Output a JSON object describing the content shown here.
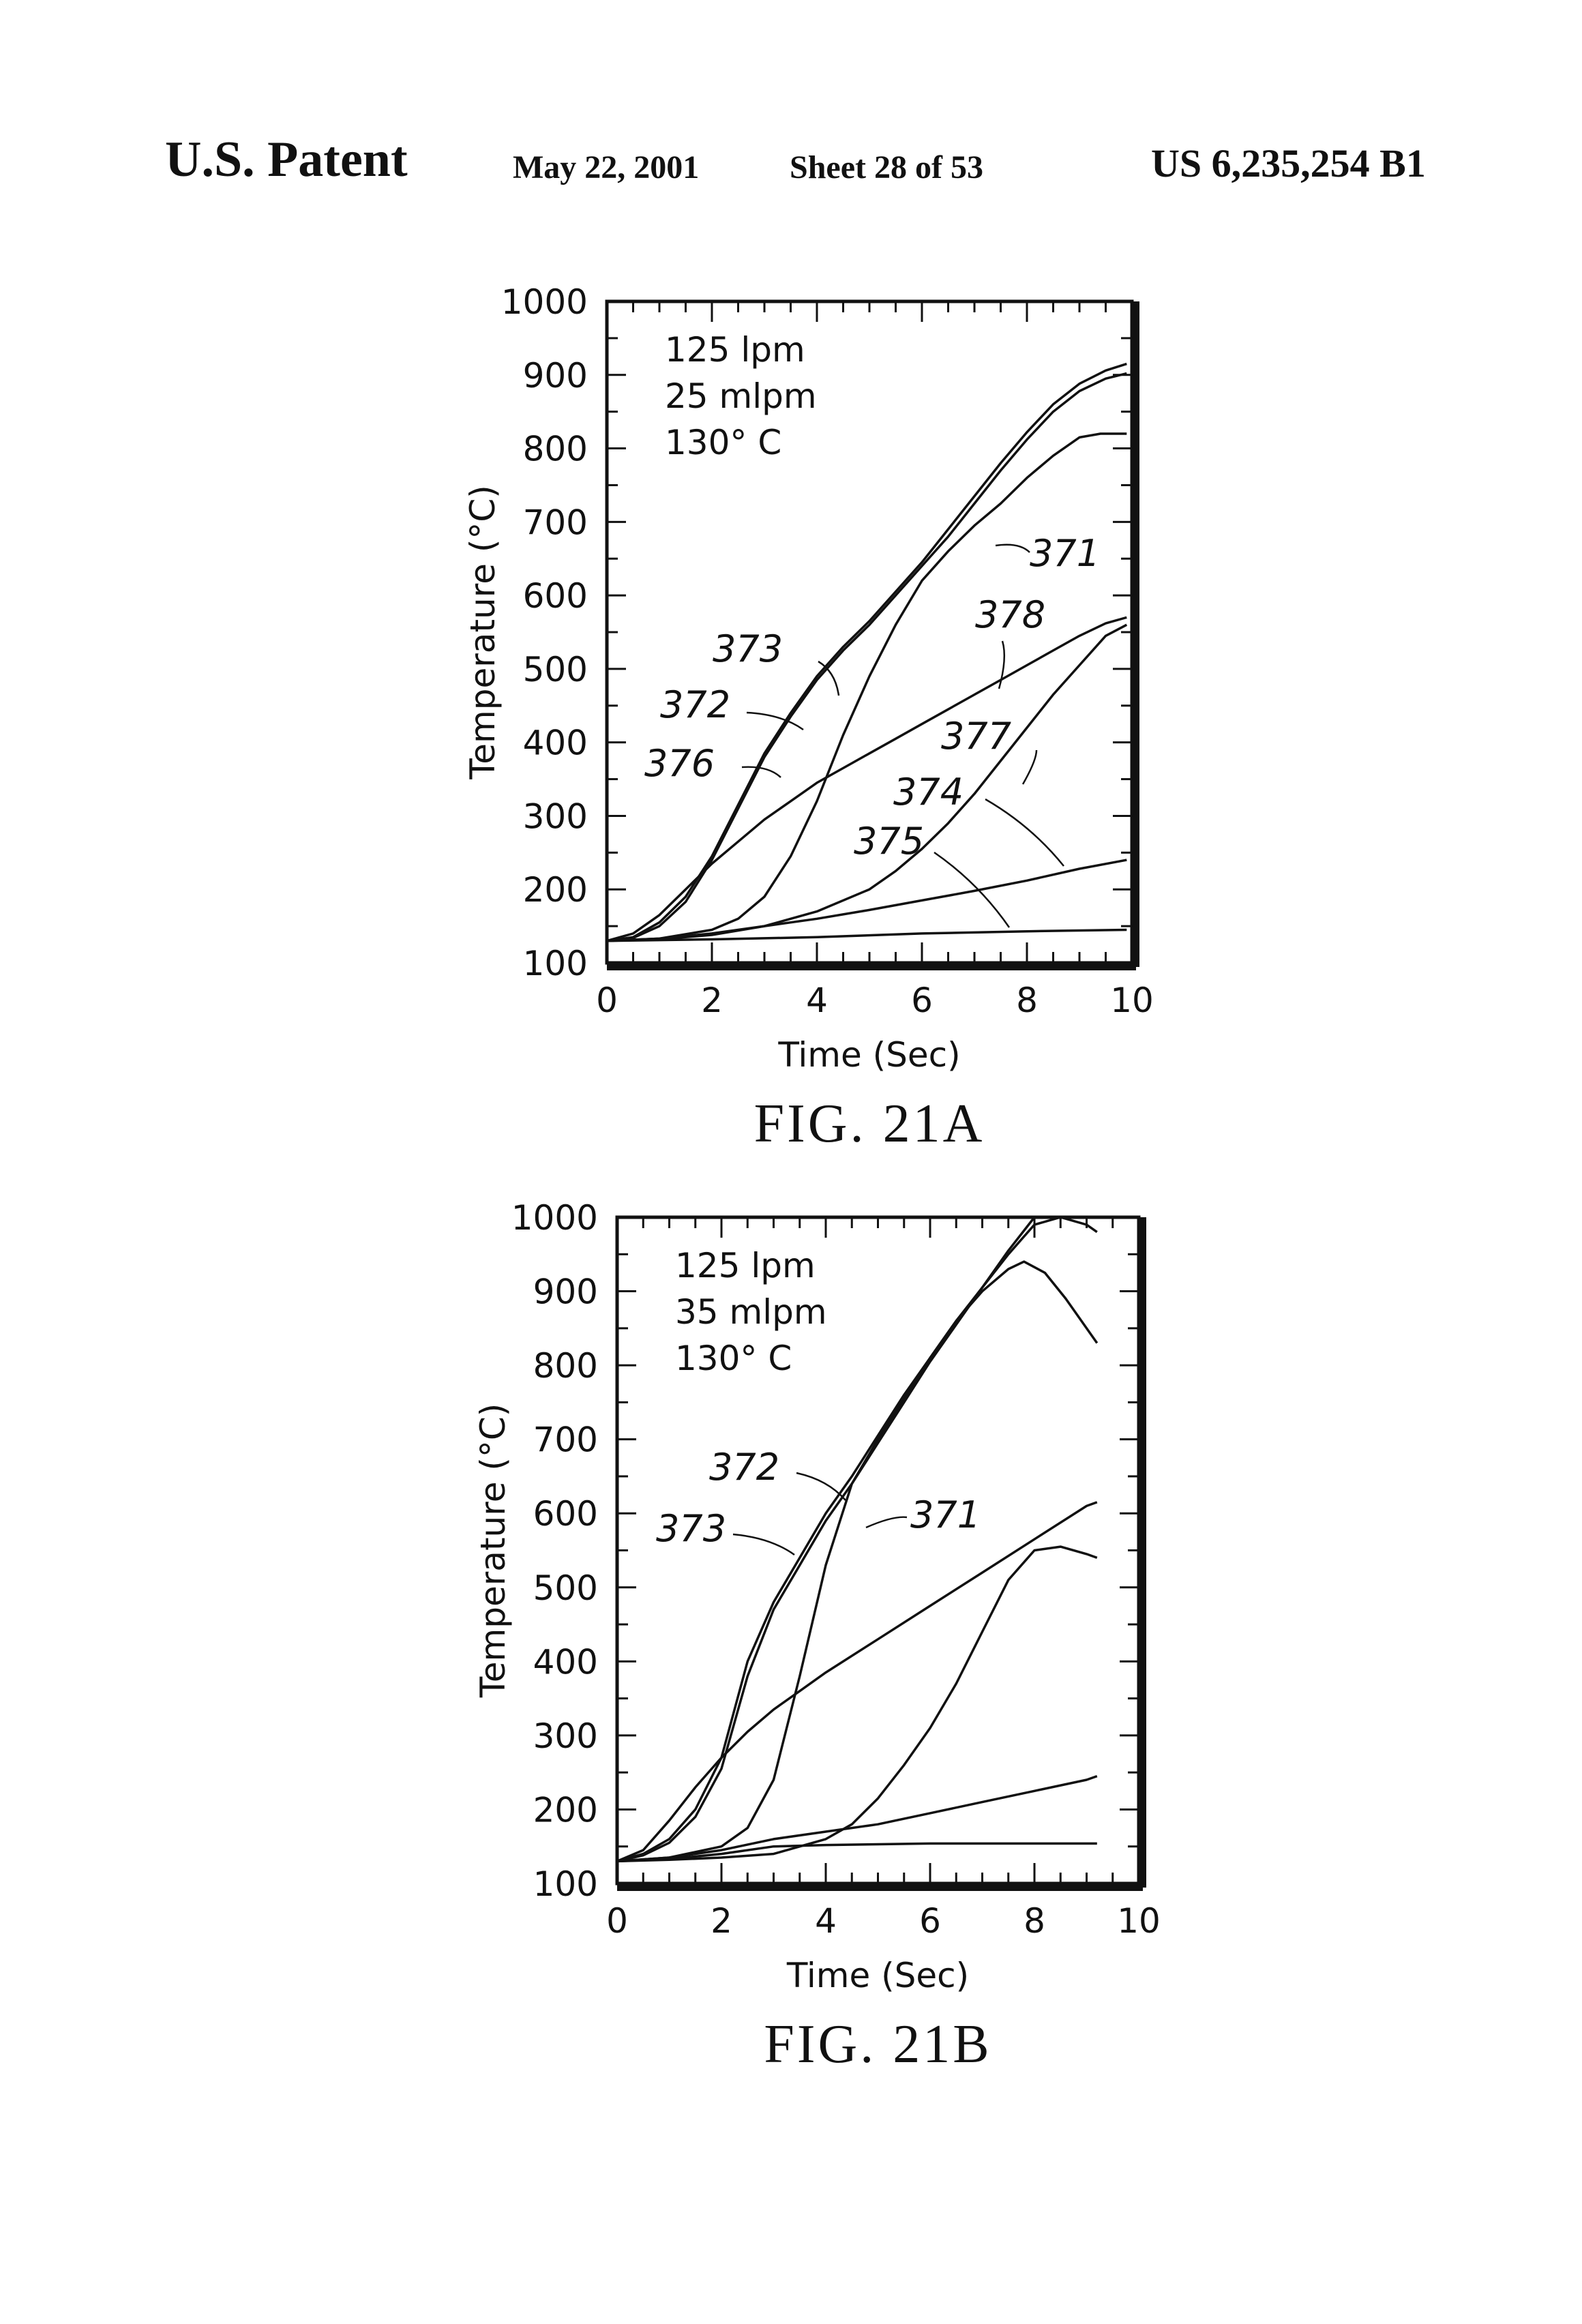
{
  "header": {
    "left": "U.S. Patent",
    "date": "May 22, 2001",
    "sheet": "Sheet 28 of 53",
    "number": "US 6,235,254 B1"
  },
  "chart_data": [
    {
      "type": "line",
      "caption": "FIG. 21A",
      "xlabel": "Time (Sec)",
      "ylabel": "Temperature (°C)",
      "xlim": [
        0,
        10
      ],
      "ylim": [
        100,
        1000
      ],
      "xticks": [
        0,
        2,
        4,
        6,
        8,
        10
      ],
      "yticks": [
        100,
        200,
        300,
        400,
        500,
        600,
        700,
        800,
        900,
        1000
      ],
      "annotation": [
        "125 lpm",
        "25 mlpm",
        "130° C"
      ],
      "series": [
        {
          "name": "373",
          "x": [
            0,
            0.5,
            1,
            1.5,
            2,
            2.5,
            3,
            3.5,
            4,
            4.5,
            5,
            5.5,
            6,
            6.5,
            7,
            7.5,
            8,
            8.5,
            9,
            9.5,
            9.9
          ],
          "y": [
            130,
            135,
            155,
            190,
            245,
            315,
            385,
            440,
            490,
            530,
            565,
            605,
            645,
            690,
            735,
            780,
            822,
            860,
            888,
            906,
            915
          ]
        },
        {
          "name": "372",
          "x": [
            0,
            0.5,
            1,
            1.5,
            2,
            2.5,
            3,
            3.5,
            4,
            4.5,
            5,
            5.5,
            6,
            6.5,
            7,
            7.5,
            8,
            8.5,
            9,
            9.5,
            9.9
          ],
          "y": [
            130,
            134,
            150,
            183,
            240,
            310,
            380,
            435,
            485,
            525,
            560,
            600,
            640,
            680,
            725,
            770,
            812,
            850,
            878,
            895,
            902
          ]
        },
        {
          "name": "371",
          "x": [
            0,
            1,
            2,
            2.5,
            3,
            3.5,
            4,
            4.5,
            5,
            5.5,
            6,
            6.5,
            7,
            7.5,
            8,
            8.5,
            9,
            9.4,
            9.9
          ],
          "y": [
            130,
            133,
            145,
            160,
            190,
            245,
            320,
            410,
            490,
            560,
            620,
            660,
            695,
            725,
            760,
            790,
            815,
            820,
            820
          ]
        },
        {
          "name": "376",
          "x": [
            0,
            0.5,
            1,
            1.5,
            2,
            2.5,
            3,
            3.5,
            4,
            4.5,
            5,
            5.5,
            6,
            6.5,
            7,
            7.5,
            8,
            8.5,
            9,
            9.5,
            9.9
          ],
          "y": [
            130,
            140,
            165,
            200,
            235,
            265,
            295,
            320,
            345,
            365,
            385,
            405,
            425,
            445,
            465,
            485,
            505,
            525,
            545,
            562,
            570
          ]
        },
        {
          "name": "378",
          "x": [
            0,
            1,
            2,
            3,
            4,
            5,
            5.5,
            6,
            6.5,
            7,
            7.5,
            8,
            8.5,
            9,
            9.5,
            9.9
          ],
          "y": [
            130,
            132,
            138,
            150,
            170,
            200,
            225,
            255,
            290,
            330,
            375,
            420,
            465,
            505,
            545,
            560
          ]
        },
        {
          "name": "377",
          "x": [
            0,
            1,
            2,
            3,
            4,
            5,
            6,
            7,
            8,
            9,
            9.9
          ],
          "y": [
            130,
            133,
            140,
            150,
            160,
            172,
            185,
            198,
            212,
            228,
            240
          ]
        },
        {
          "name": "374",
          "x": [
            0,
            2,
            4,
            6,
            8,
            9.9
          ],
          "y": [
            130,
            132,
            135,
            140,
            143,
            145
          ]
        },
        {
          "name": "375",
          "x": [],
          "y": []
        }
      ],
      "labels": [
        "373",
        "372",
        "376",
        "371",
        "378",
        "377",
        "374",
        "375"
      ]
    },
    {
      "type": "line",
      "caption": "FIG. 21B",
      "xlabel": "Time (Sec)",
      "ylabel": "Temperature (°C)",
      "xlim": [
        0,
        10
      ],
      "ylim": [
        100,
        1000
      ],
      "xticks": [
        0,
        2,
        4,
        6,
        8,
        10
      ],
      "yticks": [
        100,
        200,
        300,
        400,
        500,
        600,
        700,
        800,
        900,
        1000
      ],
      "annotation": [
        "125 lpm",
        "35 mlpm",
        "130° C"
      ],
      "series": [
        {
          "name": "373",
          "x": [
            0,
            0.5,
            1,
            1.5,
            2,
            2.5,
            3,
            3.5,
            4,
            4.5,
            5,
            5.5,
            6,
            6.5,
            7,
            7.5,
            8,
            8.5,
            9,
            9.2
          ],
          "y": [
            130,
            140,
            160,
            200,
            270,
            400,
            480,
            540,
            600,
            650,
            705,
            760,
            810,
            860,
            905,
            950,
            990,
            1000,
            990,
            980
          ]
        },
        {
          "name": "372",
          "x": [
            0,
            0.5,
            1,
            1.5,
            2,
            2.5,
            3,
            3.5,
            4,
            4.5,
            5,
            5.5,
            6,
            6.5,
            7,
            7.5,
            8
          ],
          "y": [
            130,
            138,
            155,
            190,
            255,
            380,
            470,
            530,
            590,
            640,
            695,
            750,
            805,
            855,
            905,
            955,
            1000
          ]
        },
        {
          "name": "371",
          "x": [
            0,
            1,
            2,
            2.5,
            3,
            3.5,
            4,
            4.5,
            5,
            5.5,
            6,
            6.5,
            7,
            7.5,
            7.8,
            8.2,
            8.6,
            9.2
          ],
          "y": [
            130,
            135,
            150,
            175,
            240,
            380,
            530,
            640,
            700,
            755,
            810,
            860,
            900,
            930,
            940,
            925,
            890,
            830
          ]
        },
        {
          "name": "",
          "x": [
            0,
            0.5,
            1,
            1.5,
            2,
            2.5,
            3,
            3.5,
            4,
            5,
            6,
            7,
            8,
            9,
            9.2
          ],
          "y": [
            130,
            145,
            185,
            230,
            270,
            305,
            335,
            360,
            385,
            430,
            475,
            520,
            565,
            610,
            615
          ]
        },
        {
          "name": "",
          "x": [
            0,
            1,
            2,
            3,
            4,
            4.5,
            5,
            5.5,
            6,
            6.5,
            7,
            7.5,
            8,
            8.5,
            9,
            9.2
          ],
          "y": [
            130,
            132,
            135,
            140,
            160,
            180,
            215,
            260,
            310,
            370,
            440,
            510,
            550,
            555,
            545,
            540
          ]
        },
        {
          "name": "",
          "x": [
            0,
            1,
            2,
            3,
            4,
            5,
            6,
            7,
            8,
            9,
            9.2
          ],
          "y": [
            130,
            135,
            145,
            160,
            170,
            180,
            195,
            210,
            225,
            240,
            245
          ]
        },
        {
          "name": "",
          "x": [
            0,
            1,
            2,
            3,
            4,
            5,
            6,
            7,
            8,
            9,
            9.2
          ],
          "y": [
            130,
            133,
            140,
            150,
            152,
            153,
            154,
            154,
            154,
            154,
            154
          ]
        }
      ],
      "labels": [
        "372",
        "373",
        "371"
      ]
    }
  ]
}
